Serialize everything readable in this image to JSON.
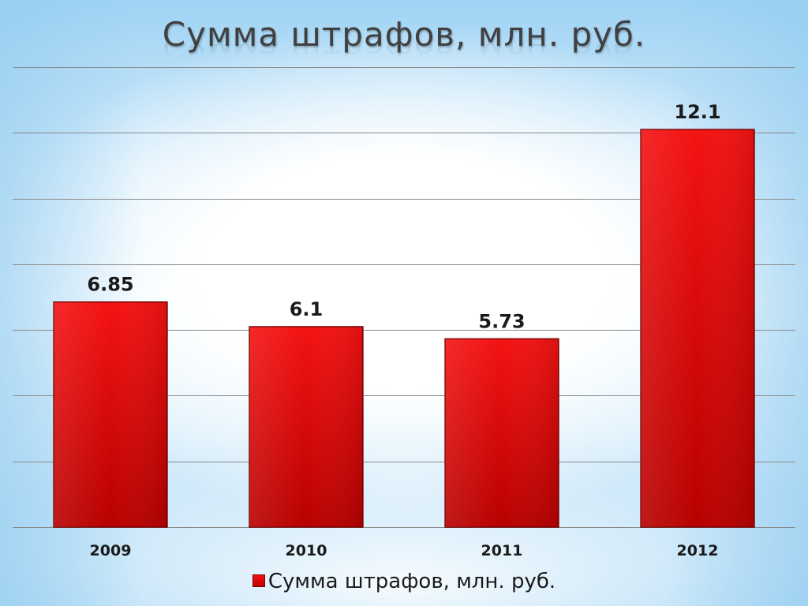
{
  "chart_data": {
    "type": "bar",
    "title": "Сумма штрафов, млн. руб.",
    "categories": [
      "2009",
      "2010",
      "2011",
      "2012"
    ],
    "series": [
      {
        "name": "Сумма штрафов, млн. руб.",
        "values": [
          6.85,
          6.1,
          5.73,
          12.1
        ],
        "labels": [
          "6.85",
          "6.1",
          "5.73",
          "12.1"
        ]
      }
    ],
    "xlabel": "",
    "ylabel": "",
    "ylim": [
      0,
      14
    ],
    "grid": true,
    "legend_position": "bottom",
    "colors": {
      "bar_top": "#f41212",
      "bar_bottom": "#b80000",
      "bar_border": "#7a0000",
      "grid": "#8a8a8a",
      "text": "#1a1a1a",
      "title": "#404040"
    }
  }
}
